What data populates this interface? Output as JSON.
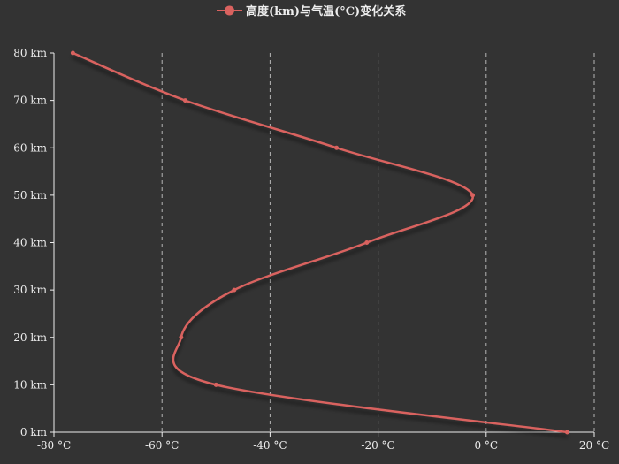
{
  "chart_data": {
    "type": "line",
    "legend": {
      "label": "高度(km)与气温(°C)变化关系",
      "position": "top-center"
    },
    "x_axis": {
      "unit": "°C",
      "range": [
        -80,
        20
      ],
      "tick_labels": [
        "-80 °C",
        "-60 °C",
        "-40 °C",
        "-20 °C",
        "0 °C",
        "20 °C"
      ],
      "grid": "dashed-vertical"
    },
    "y_axis": {
      "unit": "km",
      "range": [
        0,
        80
      ],
      "tick_labels": [
        "0 km",
        "10 km",
        "20 km",
        "30 km",
        "40 km",
        "50 km",
        "60 km",
        "70 km",
        "80 km"
      ],
      "grid": false
    },
    "series": [
      {
        "name": "高度(km)与气温(°C)变化关系",
        "smooth": true,
        "color": "#c23531",
        "points": [
          {
            "x": 15,
            "y": 0
          },
          {
            "x": -50,
            "y": 10
          },
          {
            "x": -56.46,
            "y": 20
          },
          {
            "x": -46.64,
            "y": 30
          },
          {
            "x": -22.1,
            "y": 40
          },
          {
            "x": -2.5,
            "y": 50
          },
          {
            "x": -27.7,
            "y": 60
          },
          {
            "x": -55.7,
            "y": 70
          },
          {
            "x": -76.5,
            "y": 80
          }
        ]
      }
    ]
  },
  "colors": {
    "background": "#333333",
    "line": "#d9625f",
    "axis": "#eeeeee",
    "grid": "#cccccc",
    "text": "#eeeeee"
  }
}
